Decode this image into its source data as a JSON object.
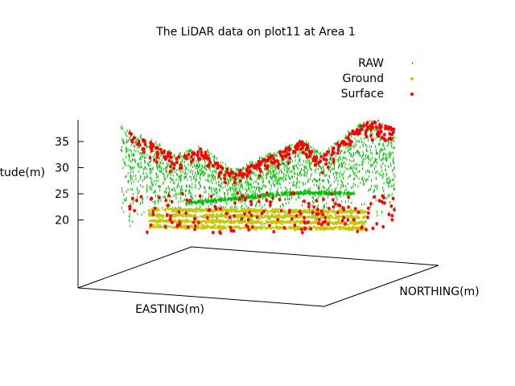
{
  "chart_data": {
    "type": "scatter",
    "projection": "3d",
    "title": "The LiDAR data on plot11 at Area 1",
    "xlabel": "EASTING(m)",
    "ylabel": "NORTHING(m)",
    "zlabel": "tude(m)",
    "zticks": [
      "35",
      "30",
      "25",
      "20"
    ],
    "zlim": [
      10,
      38
    ],
    "grid": false,
    "legend_position": "top-right",
    "series": [
      {
        "name": "RAW",
        "color": "#00c000",
        "marker": "small-tick"
      },
      {
        "name": "Ground",
        "color": "#c8c800",
        "marker": "dot"
      },
      {
        "name": "Surface",
        "color": "#ff0000",
        "marker": "dot"
      }
    ]
  }
}
